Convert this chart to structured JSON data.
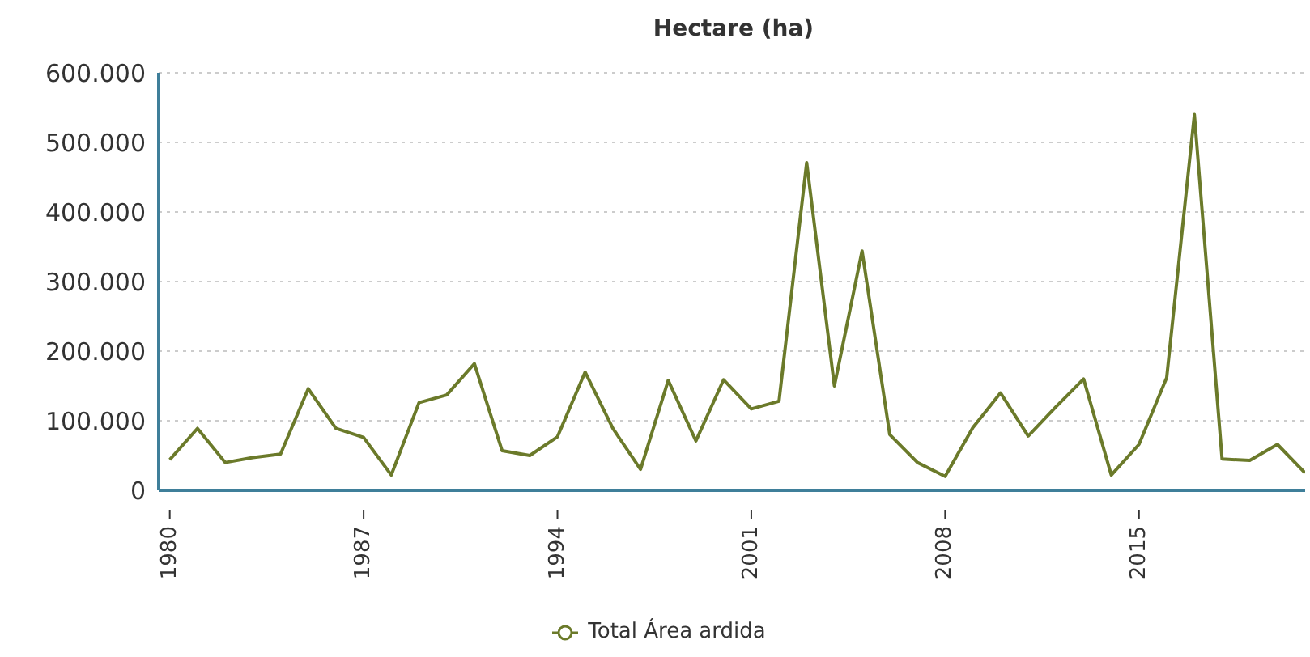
{
  "chart_data": {
    "type": "line",
    "title": "Hectare (ha)",
    "x": [
      1980,
      1981,
      1982,
      1983,
      1984,
      1985,
      1986,
      1987,
      1988,
      1989,
      1990,
      1991,
      1992,
      1993,
      1994,
      1995,
      1996,
      1997,
      1998,
      1999,
      2000,
      2001,
      2002,
      2003,
      2004,
      2005,
      2006,
      2007,
      2008,
      2009,
      2010,
      2011,
      2012,
      2013,
      2014,
      2015,
      2016,
      2017,
      2018,
      2019,
      2020,
      2021
    ],
    "series": [
      {
        "name": "Total Área ardida",
        "color": "#6b7a2a",
        "values": [
          44000,
          89000,
          40000,
          47000,
          52000,
          146000,
          89000,
          76000,
          22000,
          126000,
          137000,
          182000,
          57000,
          50000,
          77000,
          170000,
          89000,
          30000,
          158000,
          71000,
          159000,
          117000,
          128000,
          471000,
          150000,
          344000,
          80000,
          40000,
          20000,
          90000,
          140000,
          78000,
          120000,
          160000,
          22000,
          66000,
          162000,
          540000,
          45000,
          43000,
          66000,
          25000
        ]
      }
    ],
    "xlim": [
      1979.6,
      2021
    ],
    "xticks": [
      1980,
      1987,
      1994,
      2001,
      2008,
      2015
    ],
    "ylim": [
      0,
      600000
    ],
    "yticks": [
      {
        "value": 0,
        "label": "0"
      },
      {
        "value": 100000,
        "label": "100.000"
      },
      {
        "value": 200000,
        "label": "200.000"
      },
      {
        "value": 300000,
        "label": "300.000"
      },
      {
        "value": 400000,
        "label": "400.000"
      },
      {
        "value": 500000,
        "label": "500.000"
      },
      {
        "value": 600000,
        "label": "600.000"
      }
    ],
    "grid": "y",
    "legend": "bottom",
    "marker": "none",
    "line_style": "solid"
  }
}
